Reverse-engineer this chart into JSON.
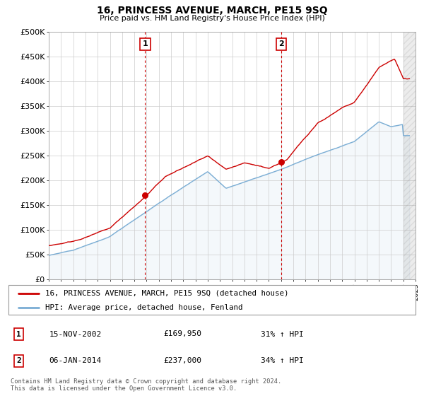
{
  "title": "16, PRINCESS AVENUE, MARCH, PE15 9SQ",
  "subtitle": "Price paid vs. HM Land Registry's House Price Index (HPI)",
  "ylabel_ticks": [
    "£0",
    "£50K",
    "£100K",
    "£150K",
    "£200K",
    "£250K",
    "£300K",
    "£350K",
    "£400K",
    "£450K",
    "£500K"
  ],
  "ytick_values": [
    0,
    50000,
    100000,
    150000,
    200000,
    250000,
    300000,
    350000,
    400000,
    450000,
    500000
  ],
  "xlim_years": [
    1995,
    2025
  ],
  "ylim": [
    0,
    500000
  ],
  "marker1": {
    "year": 2002.88,
    "value": 169950,
    "label": "1"
  },
  "marker2": {
    "year": 2014.03,
    "value": 237000,
    "label": "2"
  },
  "legend_line1": "16, PRINCESS AVENUE, MARCH, PE15 9SQ (detached house)",
  "legend_line2": "HPI: Average price, detached house, Fenland",
  "table_row1": [
    "1",
    "15-NOV-2002",
    "£169,950",
    "31% ↑ HPI"
  ],
  "table_row2": [
    "2",
    "06-JAN-2014",
    "£237,000",
    "34% ↑ HPI"
  ],
  "footer": "Contains HM Land Registry data © Crown copyright and database right 2024.\nThis data is licensed under the Open Government Licence v3.0.",
  "line_color_red": "#cc0000",
  "line_color_blue": "#7aadd4",
  "background_color": "#ffffff",
  "grid_color": "#cccccc",
  "hatch_start": 2024.0
}
